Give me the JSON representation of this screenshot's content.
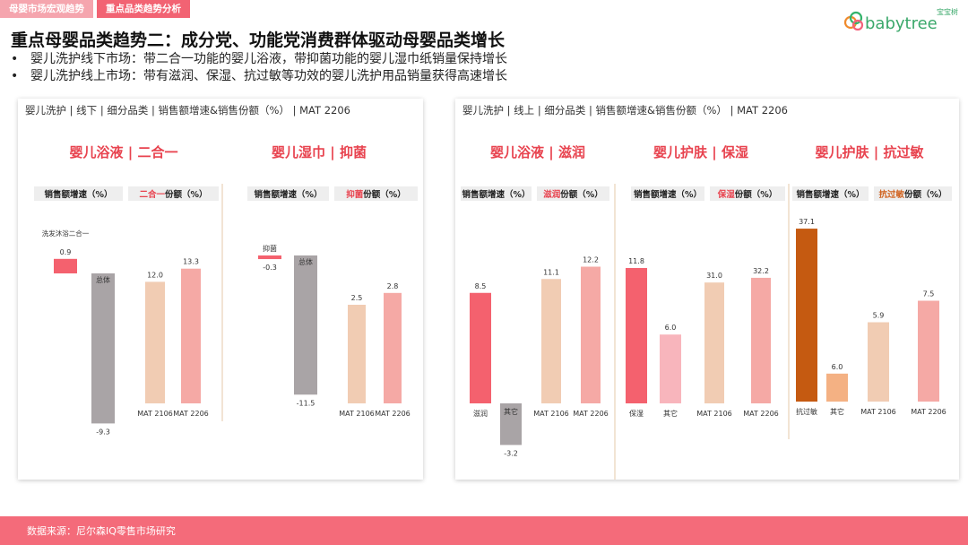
{
  "tabs": [
    "母婴市场宏观趋势",
    "重点品类趋势分析"
  ],
  "logo": {
    "text": "babytree",
    "cn": "宝宝树"
  },
  "title": "重点母婴品类趋势二：成分党、功能党消费群体驱动母婴品类增长",
  "bullets": [
    "婴儿洗护线下市场：带二合一功能的婴儿浴液，带抑菌功能的婴儿湿巾纸销量保持增长",
    "婴儿洗护线上市场：带有滋润、保湿、抗过敏等功效的婴儿洗护用品销量获得高速增长"
  ],
  "bullet_mark": "•",
  "colors": {
    "pink_dark": "#f4616e",
    "pink_light": "#f5a9a5",
    "grey": "#a9a4a6",
    "peach": "#f1ccb3",
    "pink_soft": "#f8b5bc",
    "brown": "#c55a11",
    "orange_light": "#f4b183",
    "title_red": "#e8434f",
    "footer": "#f46b7a"
  },
  "footer": "数据来源：尼尔森IQ零售市场研究",
  "chart_data": [
    {
      "panel_header": "婴儿洗护 | 线下 | 细分品类 | 销售额增速&销售份额（%） | MAT 2206",
      "groups": [
        {
          "title": "婴儿浴液 | 二合一",
          "growth_label": "销售额增速（%）",
          "share_label_highlight": "二合一",
          "share_label_suffix": "份额（%）",
          "growth": {
            "type": "bar",
            "categories": [
              "洗发沐浴二合一",
              "总体"
            ],
            "values": [
              0.9,
              -9.3
            ]
          },
          "share": {
            "type": "bar",
            "categories": [
              "MAT 2106",
              "MAT 2206"
            ],
            "values": [
              12.0,
              13.3
            ]
          }
        },
        {
          "title": "婴儿湿巾 | 抑菌",
          "growth_label": "销售额增速（%）",
          "share_label_highlight": "抑菌",
          "share_label_suffix": "份额（%）",
          "growth": {
            "type": "bar",
            "categories": [
              "抑菌",
              "总体"
            ],
            "values": [
              -0.3,
              -11.5
            ]
          },
          "share": {
            "type": "bar",
            "categories": [
              "MAT 2106",
              "MAT 2206"
            ],
            "values": [
              2.5,
              2.8
            ]
          }
        }
      ]
    },
    {
      "panel_header": "婴儿洗护 | 线上 | 细分品类 | 销售额增速&销售份额（%） | MAT 2206",
      "groups": [
        {
          "title": "婴儿浴液 | 滋润",
          "growth_label": "销售额增速（%）",
          "share_label_highlight": "滋润",
          "share_label_suffix": "份额（%）",
          "growth": {
            "type": "bar",
            "categories": [
              "滋润",
              "其它"
            ],
            "values": [
              8.5,
              -3.2
            ]
          },
          "share": {
            "type": "bar",
            "categories": [
              "MAT 2106",
              "MAT 2206"
            ],
            "values": [
              11.1,
              12.2
            ]
          }
        },
        {
          "title": "婴儿护肤 | 保湿",
          "growth_label": "销售额增速（%）",
          "share_label_highlight": "保湿",
          "share_label_suffix": "份额（%）",
          "growth": {
            "type": "bar",
            "categories": [
              "保湿",
              "其它"
            ],
            "values": [
              11.8,
              6.0
            ]
          },
          "share": {
            "type": "bar",
            "categories": [
              "MAT 2106",
              "MAT 2206"
            ],
            "values": [
              31.0,
              32.2
            ]
          }
        },
        {
          "title": "婴儿护肤 | 抗过敏",
          "growth_label": "销售额增速（%）",
          "share_label_highlight": "抗过敏",
          "share_label_suffix": "份额（%）",
          "growth": {
            "type": "bar",
            "categories": [
              "抗过敏",
              "其它"
            ],
            "values": [
              37.1,
              6.0
            ]
          },
          "share": {
            "type": "bar",
            "categories": [
              "MAT 2106",
              "MAT 2206"
            ],
            "values": [
              5.9,
              7.5
            ]
          }
        }
      ]
    }
  ]
}
